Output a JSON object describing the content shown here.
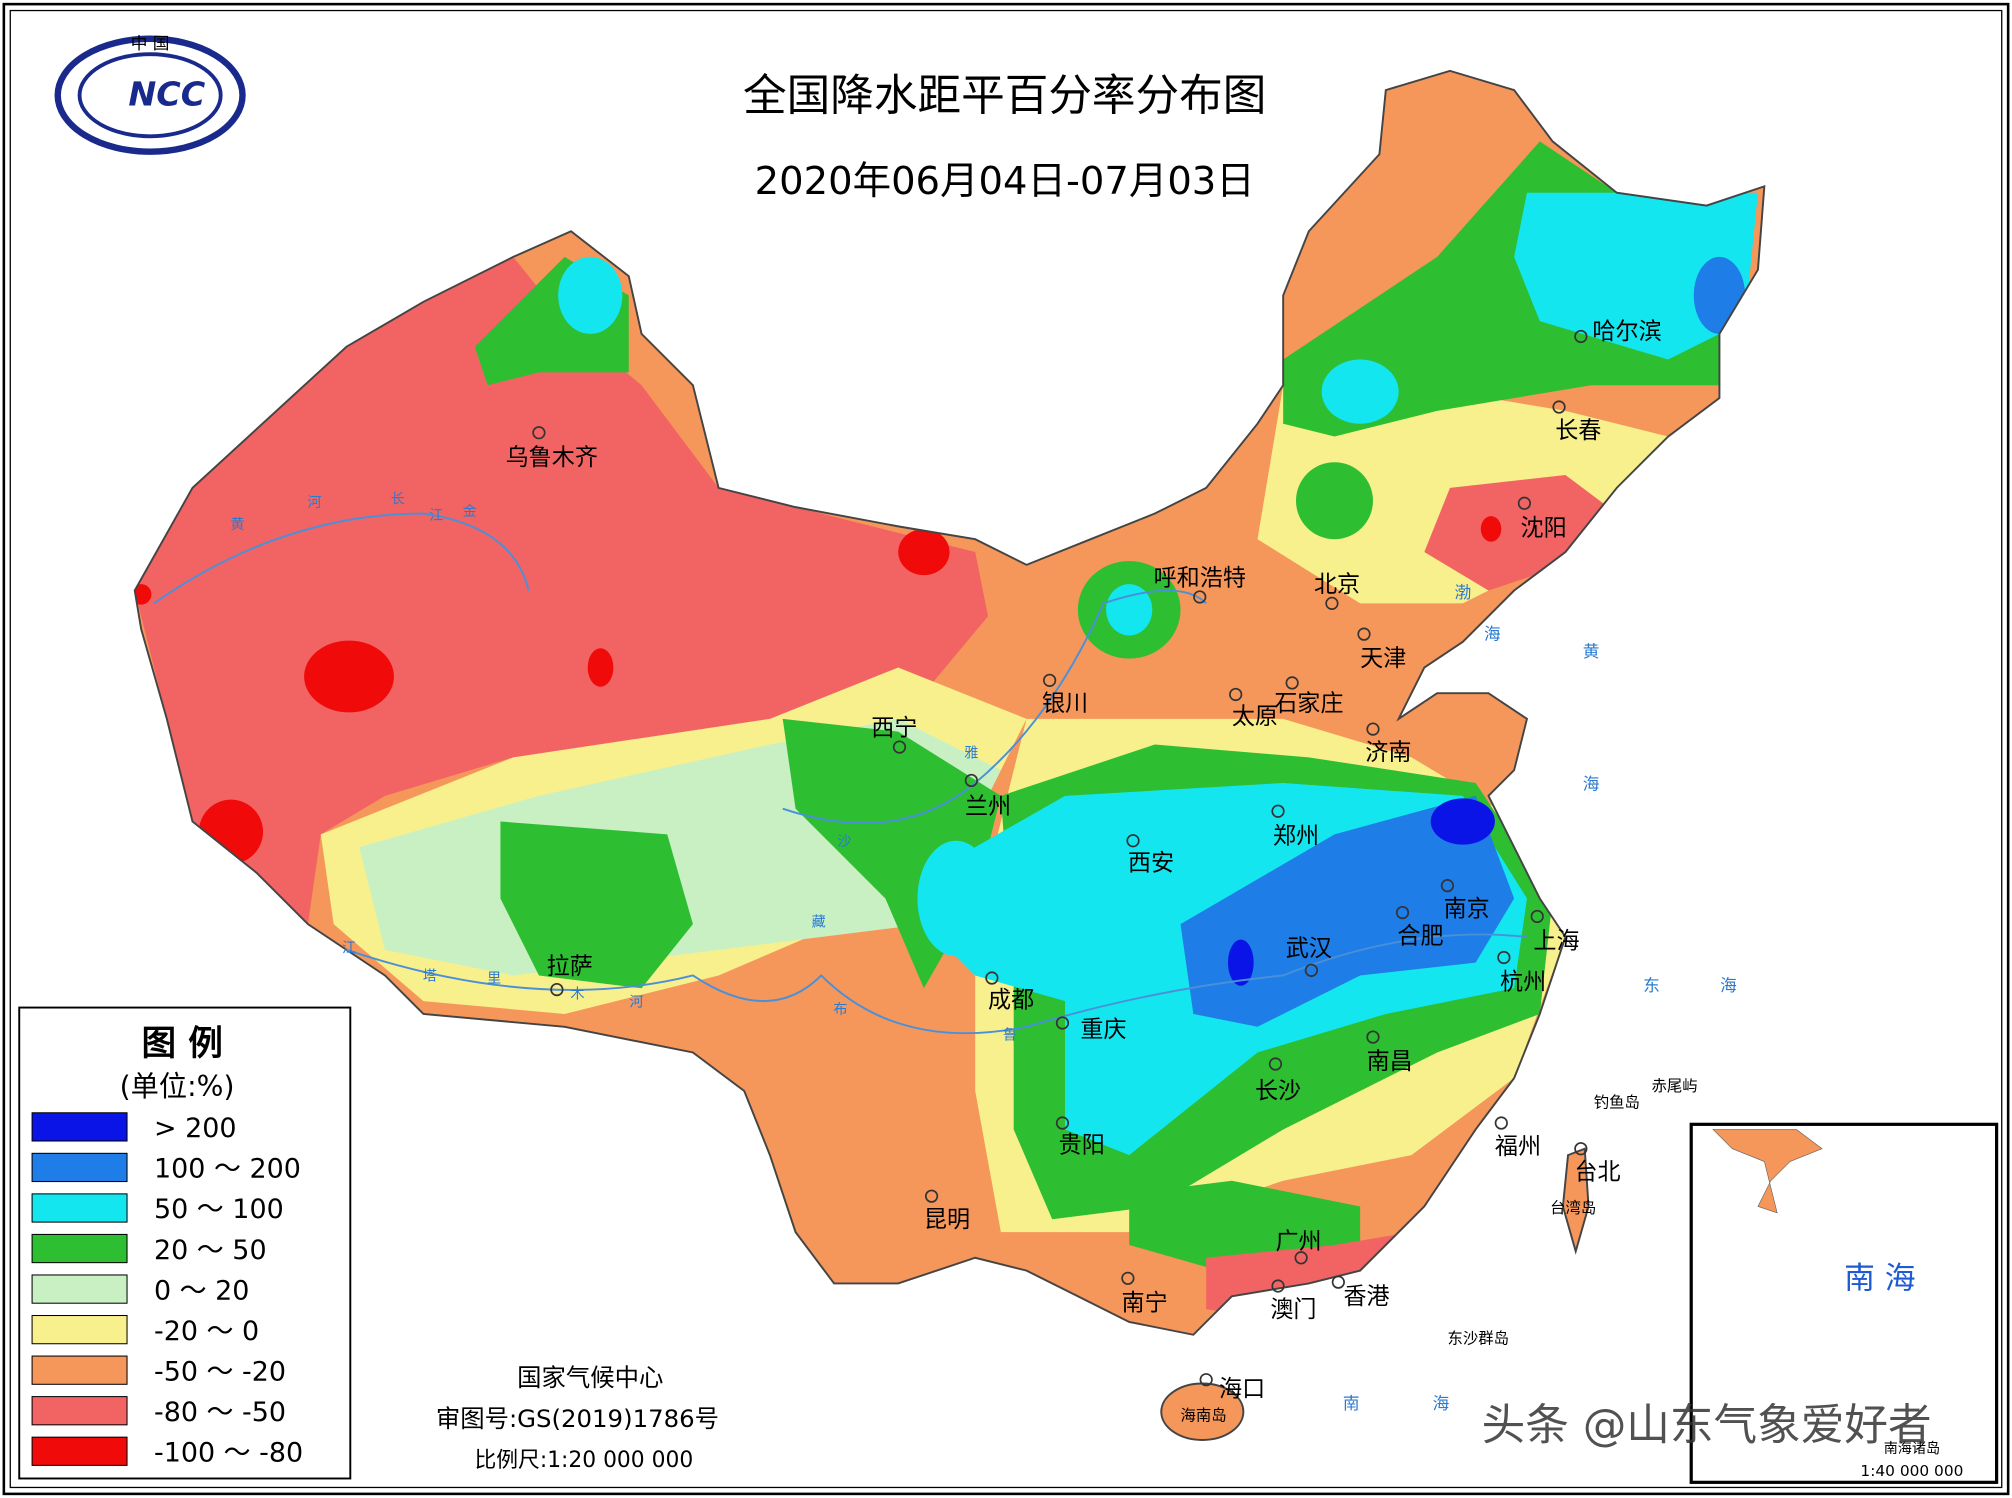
{
  "header": {
    "title": "全国降水距平百分率分布图",
    "subtitle": "2020年06月04日-07月03日",
    "logo_top": "中 国",
    "logo_text": "NCC"
  },
  "legend": {
    "title": "图 例",
    "unit": "(单位:%)",
    "items": [
      {
        "label": "> 200",
        "color": "#0a14e6"
      },
      {
        "label": "100 ～ 200",
        "color": "#1e7de6"
      },
      {
        "label": "50 ～ 100",
        "color": "#14e6f0"
      },
      {
        "label": "20 ～ 50",
        "color": "#2dbe32"
      },
      {
        "label": "0 ～ 20",
        "color": "#c8f0c3"
      },
      {
        "label": "-20 ～ 0",
        "color": "#f8f08c"
      },
      {
        "label": "-50 ～ -20",
        "color": "#f5965a"
      },
      {
        "label": "-80 ～ -50",
        "color": "#f26464"
      },
      {
        "label": "-100 ～ -80",
        "color": "#f00a0a"
      }
    ]
  },
  "cities": [
    "乌鲁木齐",
    "呼和浩特",
    "北京",
    "天津",
    "石家庄",
    "太原",
    "济南",
    "银川",
    "西宁",
    "兰州",
    "郑州",
    "西安",
    "南京",
    "合肥",
    "上海",
    "武汉",
    "杭州",
    "拉萨",
    "成都",
    "重庆",
    "南昌",
    "长沙",
    "贵阳",
    "福州",
    "台北",
    "昆明",
    "广州",
    "南宁",
    "香港",
    "澳门",
    "海口",
    "哈尔滨",
    "长春",
    "沈阳"
  ],
  "places": [
    "东沙群岛",
    "台湾岛",
    "钓鱼岛",
    "赤尾屿",
    "海南岛"
  ],
  "seas": [
    "渤",
    "海",
    "黄",
    "海",
    "东",
    "海",
    "南",
    "海"
  ],
  "rivers": [
    "黄",
    "河",
    "长",
    "江",
    "金",
    "沙",
    "雅",
    "鲁",
    "藏",
    "布",
    "江",
    "塔",
    "里",
    "木",
    "河"
  ],
  "footer": {
    "center": "国家气候中心",
    "review_no": "审图号:GS(2019)1786号",
    "scale": "比例尺:1:20 000 000"
  },
  "inset": {
    "label": "南 海",
    "sublabel": "南海诸岛",
    "scale": "1:40 000 000"
  },
  "watermark": "头条 @山东气象爱好者"
}
